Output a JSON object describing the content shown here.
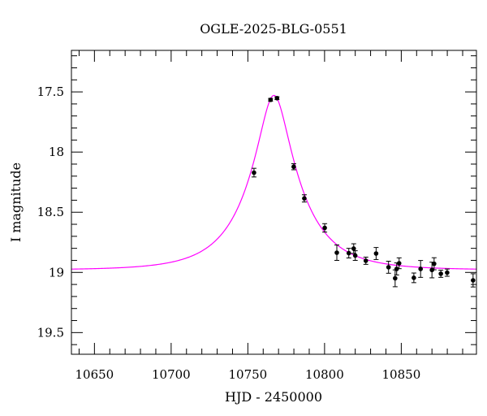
{
  "chart_data": {
    "type": "scatter",
    "title": "OGLE-2025-BLG-0551",
    "xlabel": "HJD - 2450000",
    "ylabel": "I magnitude",
    "xlim": [
      10635,
      10899
    ],
    "ylim": [
      19.68,
      17.155
    ],
    "y_inverted": true,
    "grid": false,
    "x_ticks": [
      10650,
      10700,
      10750,
      10800,
      10850
    ],
    "x_tick_labels": [
      "10650",
      "10700",
      "10750",
      "10800",
      "10850"
    ],
    "y_ticks": [
      17.5,
      18,
      18.5,
      19,
      19.5
    ],
    "y_tick_labels": [
      "17.5",
      "18",
      "18.5",
      "19",
      "19.5"
    ],
    "colors": {
      "points": "#000000",
      "model": "#ff00ff"
    },
    "series": [
      {
        "type": "scatter",
        "x": [
          10754.0,
          10764.8,
          10769.0,
          10779.9,
          10786.8,
          10800.1,
          10808.0,
          10815.8,
          10819.0,
          10820.0,
          10826.9,
          10833.6,
          10841.7,
          10846.0,
          10847.0,
          10848.6,
          10858.2,
          10862.6,
          10870.0,
          10871.4,
          10875.8,
          10879.9,
          10896.8
        ],
        "y": [
          18.171,
          17.566,
          17.552,
          18.122,
          18.385,
          18.63,
          18.836,
          18.84,
          18.802,
          18.86,
          18.903,
          18.843,
          18.957,
          19.049,
          18.971,
          18.924,
          19.045,
          18.971,
          18.98,
          18.928,
          19.011,
          19.002,
          19.066
        ],
        "yerr": [
          0.036,
          0.012,
          0.012,
          0.025,
          0.03,
          0.035,
          0.064,
          0.04,
          0.04,
          0.04,
          0.03,
          0.05,
          0.05,
          0.07,
          0.05,
          0.045,
          0.04,
          0.07,
          0.065,
          0.05,
          0.03,
          0.03,
          0.055
        ]
      },
      {
        "type": "line",
        "model": "point-lens",
        "t0": 10767,
        "tE": 34,
        "u0": 0.27,
        "baseline": 18.98
      }
    ]
  }
}
